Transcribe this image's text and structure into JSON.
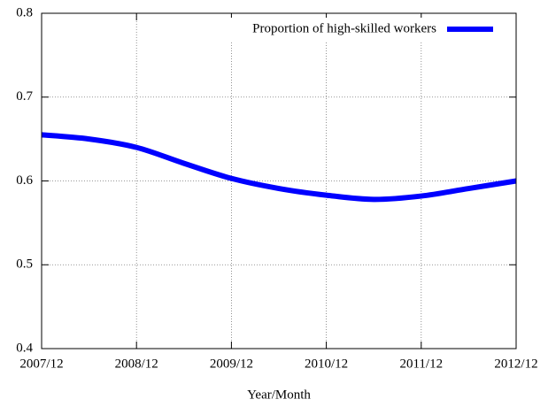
{
  "chart_data": {
    "type": "line",
    "x": [
      "2007/12",
      "2008/06",
      "2008/12",
      "2009/06",
      "2009/12",
      "2010/06",
      "2010/12",
      "2011/06",
      "2011/12",
      "2012/06",
      "2012/12"
    ],
    "series": [
      {
        "name": "Proportion of high-skilled workers",
        "color": "#0000ff",
        "values": [
          0.655,
          0.65,
          0.64,
          0.621,
          0.603,
          0.591,
          0.583,
          0.578,
          0.582,
          0.591,
          0.6
        ]
      }
    ],
    "xticks": [
      "2007/12",
      "2008/12",
      "2009/12",
      "2010/12",
      "2011/12",
      "2012/12"
    ],
    "ylim": [
      0.4,
      0.8
    ],
    "yticks": [
      0.4,
      0.5,
      0.6,
      0.7,
      0.8
    ],
    "xlabel": "Year/Month",
    "grid": true,
    "legend": "top-right"
  }
}
